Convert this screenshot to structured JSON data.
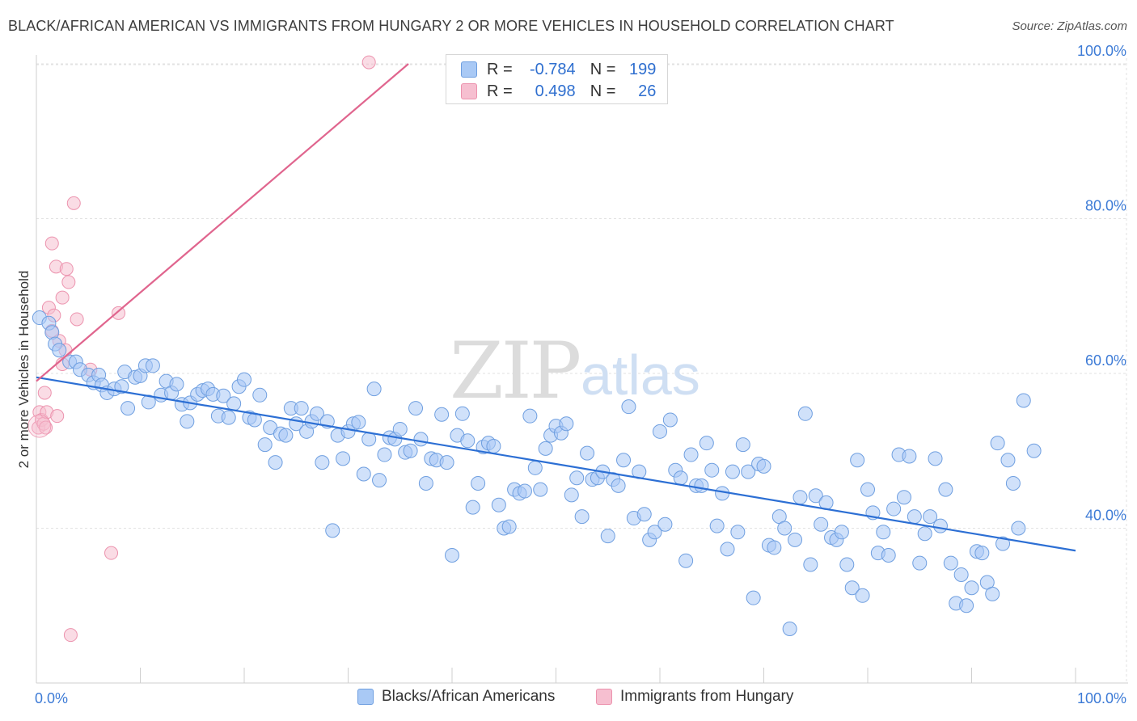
{
  "title": "BLACK/AFRICAN AMERICAN VS IMMIGRANTS FROM HUNGARY 2 OR MORE VEHICLES IN HOUSEHOLD CORRELATION CHART",
  "source": "Source: ZipAtlas.com",
  "watermark": {
    "zip": "ZIP",
    "atlas": "atlas"
  },
  "stats": {
    "r_label": "R =",
    "n_label": "N =",
    "rows": [
      {
        "r": "-0.784",
        "n": "199"
      },
      {
        "r": "0.498",
        "n": "26"
      }
    ]
  },
  "legend": {
    "items": [
      "Blacks/African Americans",
      "Immigrants from Hungary"
    ]
  },
  "colors": {
    "blue_fill": "#a9c9f5",
    "blue_stroke": "#6f9fe0",
    "blue_line": "#2c6fd4",
    "pink_fill": "#f6bfd0",
    "pink_stroke": "#ec93ae",
    "pink_line": "#e0658e",
    "grid": "#e2e2e2",
    "axis_label": "#3d7bd6"
  },
  "chart_data": {
    "type": "scatter",
    "title": "BLACK/AFRICAN AMERICAN VS IMMIGRANTS FROM HUNGARY 2 OR MORE VEHICLES IN HOUSEHOLD CORRELATION CHART",
    "xlabel": "",
    "ylabel": "2 or more Vehicles in Household",
    "xlim": [
      0,
      100
    ],
    "ylim": [
      20,
      102
    ],
    "x_tick_labels": [
      "0.0%",
      "100.0%"
    ],
    "y_ticks": [
      40,
      60,
      80,
      100
    ],
    "y_tick_labels": [
      "40.0%",
      "60.0%",
      "80.0%",
      "100.0%"
    ],
    "grid": true,
    "legend_position": "bottom",
    "series": [
      {
        "name": "Blacks/African Americans",
        "color": "#a9c9f5",
        "trend": {
          "x": [
            0,
            100
          ],
          "y": [
            59.5,
            37.1
          ]
        },
        "points": [
          [
            0.3,
            67.2
          ],
          [
            1.2,
            66.5
          ],
          [
            1.5,
            65.3
          ],
          [
            1.8,
            63.8
          ],
          [
            2.2,
            63.0
          ],
          [
            3.2,
            61.5
          ],
          [
            3.8,
            61.5
          ],
          [
            4.2,
            60.5
          ],
          [
            5.0,
            59.8
          ],
          [
            5.5,
            58.8
          ],
          [
            6.0,
            59.8
          ],
          [
            6.3,
            58.5
          ],
          [
            6.8,
            57.5
          ],
          [
            7.5,
            58.0
          ],
          [
            8.2,
            58.3
          ],
          [
            8.5,
            60.2
          ],
          [
            8.8,
            55.5
          ],
          [
            9.5,
            59.5
          ],
          [
            10.0,
            59.7
          ],
          [
            10.5,
            61.0
          ],
          [
            10.8,
            56.3
          ],
          [
            11.2,
            61.0
          ],
          [
            12.0,
            57.2
          ],
          [
            12.5,
            59.0
          ],
          [
            13.0,
            57.5
          ],
          [
            13.5,
            58.6
          ],
          [
            14.0,
            56.0
          ],
          [
            14.5,
            53.8
          ],
          [
            14.8,
            56.2
          ],
          [
            15.5,
            57.3
          ],
          [
            16.0,
            57.8
          ],
          [
            16.5,
            58.0
          ],
          [
            17.0,
            57.3
          ],
          [
            17.5,
            54.5
          ],
          [
            18.0,
            57.1
          ],
          [
            18.5,
            54.3
          ],
          [
            19.0,
            56.1
          ],
          [
            19.5,
            58.3
          ],
          [
            20.0,
            59.2
          ],
          [
            20.5,
            54.3
          ],
          [
            21.0,
            54.0
          ],
          [
            21.5,
            57.2
          ],
          [
            22.0,
            50.8
          ],
          [
            22.5,
            53.0
          ],
          [
            23.0,
            48.5
          ],
          [
            23.5,
            52.2
          ],
          [
            24.0,
            52.0
          ],
          [
            24.5,
            55.5
          ],
          [
            25.0,
            53.5
          ],
          [
            25.5,
            55.5
          ],
          [
            26.0,
            52.5
          ],
          [
            26.5,
            53.8
          ],
          [
            27.0,
            54.8
          ],
          [
            27.5,
            48.5
          ],
          [
            28.0,
            53.8
          ],
          [
            28.5,
            39.7
          ],
          [
            29.0,
            52.0
          ],
          [
            29.5,
            49.0
          ],
          [
            30.0,
            52.5
          ],
          [
            30.5,
            53.5
          ],
          [
            31.0,
            53.7
          ],
          [
            31.5,
            47.0
          ],
          [
            32.0,
            51.5
          ],
          [
            32.5,
            58.0
          ],
          [
            33.0,
            46.2
          ],
          [
            33.5,
            49.5
          ],
          [
            34.0,
            51.7
          ],
          [
            34.5,
            51.5
          ],
          [
            35.0,
            52.8
          ],
          [
            35.5,
            49.8
          ],
          [
            36.0,
            50.0
          ],
          [
            36.5,
            55.5
          ],
          [
            37.0,
            51.5
          ],
          [
            37.5,
            45.8
          ],
          [
            38.0,
            49.0
          ],
          [
            38.5,
            48.8
          ],
          [
            39.0,
            54.7
          ],
          [
            39.5,
            48.5
          ],
          [
            40.0,
            36.5
          ],
          [
            40.5,
            52.0
          ],
          [
            41.0,
            54.8
          ],
          [
            41.5,
            51.3
          ],
          [
            42.0,
            42.7
          ],
          [
            42.5,
            45.8
          ],
          [
            43.0,
            50.5
          ],
          [
            43.5,
            51.0
          ],
          [
            44.0,
            50.6
          ],
          [
            44.5,
            43.0
          ],
          [
            45.0,
            40.0
          ],
          [
            45.5,
            40.2
          ],
          [
            46.0,
            45.0
          ],
          [
            46.5,
            44.5
          ],
          [
            47.0,
            44.8
          ],
          [
            47.5,
            54.5
          ],
          [
            48.0,
            47.8
          ],
          [
            48.5,
            45.0
          ],
          [
            49.0,
            50.3
          ],
          [
            49.5,
            52.0
          ],
          [
            50.0,
            53.2
          ],
          [
            50.5,
            52.3
          ],
          [
            51.0,
            53.5
          ],
          [
            51.5,
            44.3
          ],
          [
            52.0,
            46.5
          ],
          [
            52.5,
            41.5
          ],
          [
            53.0,
            49.7
          ],
          [
            53.5,
            46.3
          ],
          [
            54.0,
            46.5
          ],
          [
            54.5,
            47.3
          ],
          [
            55.0,
            39.0
          ],
          [
            55.5,
            46.3
          ],
          [
            56.0,
            45.5
          ],
          [
            56.5,
            48.8
          ],
          [
            57.0,
            55.7
          ],
          [
            57.5,
            41.3
          ],
          [
            58.0,
            47.3
          ],
          [
            58.5,
            41.8
          ],
          [
            59.0,
            38.5
          ],
          [
            59.5,
            39.5
          ],
          [
            60.0,
            52.5
          ],
          [
            60.5,
            40.5
          ],
          [
            61.0,
            54.0
          ],
          [
            61.5,
            47.5
          ],
          [
            62.0,
            46.5
          ],
          [
            62.5,
            35.8
          ],
          [
            63.0,
            49.5
          ],
          [
            63.5,
            45.5
          ],
          [
            64.0,
            45.5
          ],
          [
            64.5,
            51.0
          ],
          [
            65.0,
            47.5
          ],
          [
            65.5,
            40.3
          ],
          [
            66.0,
            44.5
          ],
          [
            66.5,
            37.3
          ],
          [
            67.0,
            47.3
          ],
          [
            67.5,
            39.5
          ],
          [
            68.0,
            50.8
          ],
          [
            68.5,
            47.3
          ],
          [
            69.0,
            31.0
          ],
          [
            69.5,
            48.3
          ],
          [
            70.0,
            48.0
          ],
          [
            70.5,
            37.8
          ],
          [
            71.0,
            37.5
          ],
          [
            71.5,
            41.5
          ],
          [
            72.0,
            40.0
          ],
          [
            72.5,
            27.0
          ],
          [
            73.0,
            38.5
          ],
          [
            73.5,
            44.0
          ],
          [
            74.0,
            54.8
          ],
          [
            74.5,
            35.3
          ],
          [
            75.0,
            44.2
          ],
          [
            75.5,
            40.5
          ],
          [
            76.0,
            43.3
          ],
          [
            76.5,
            38.8
          ],
          [
            77.0,
            38.5
          ],
          [
            77.5,
            39.5
          ],
          [
            78.0,
            35.3
          ],
          [
            78.5,
            32.3
          ],
          [
            79.0,
            48.8
          ],
          [
            79.5,
            31.3
          ],
          [
            80.0,
            45.0
          ],
          [
            80.5,
            42.0
          ],
          [
            81.0,
            36.8
          ],
          [
            81.5,
            39.5
          ],
          [
            82.0,
            36.5
          ],
          [
            82.5,
            42.5
          ],
          [
            83.0,
            49.5
          ],
          [
            83.5,
            44.0
          ],
          [
            84.0,
            49.3
          ],
          [
            84.5,
            41.5
          ],
          [
            85.0,
            35.5
          ],
          [
            85.5,
            39.3
          ],
          [
            86.0,
            41.5
          ],
          [
            86.5,
            49.0
          ],
          [
            87.0,
            40.3
          ],
          [
            87.5,
            45.0
          ],
          [
            88.0,
            35.5
          ],
          [
            88.5,
            30.3
          ],
          [
            89.0,
            34.0
          ],
          [
            89.5,
            30.0
          ],
          [
            90.0,
            32.3
          ],
          [
            90.5,
            37.0
          ],
          [
            91.0,
            36.8
          ],
          [
            91.5,
            33.0
          ],
          [
            92.0,
            31.5
          ],
          [
            92.5,
            51.0
          ],
          [
            93.0,
            38.0
          ],
          [
            93.5,
            48.8
          ],
          [
            94.0,
            45.8
          ],
          [
            94.5,
            40.0
          ],
          [
            95.0,
            56.5
          ],
          [
            96.0,
            50.0
          ]
        ]
      },
      {
        "name": "Immigrants from Hungary",
        "color": "#f6bfd0",
        "trend": {
          "x": [
            0,
            35.8
          ],
          "y": [
            59.0,
            100
          ]
        },
        "points": [
          [
            0.2,
            53.0
          ],
          [
            0.3,
            55.0
          ],
          [
            0.5,
            54.0
          ],
          [
            0.7,
            53.5
          ],
          [
            0.8,
            57.5
          ],
          [
            0.9,
            53.0
          ],
          [
            1.0,
            55.0
          ],
          [
            1.2,
            68.5
          ],
          [
            1.5,
            76.8
          ],
          [
            1.5,
            65.5
          ],
          [
            1.7,
            67.5
          ],
          [
            1.9,
            73.8
          ],
          [
            2.0,
            54.5
          ],
          [
            2.2,
            64.2
          ],
          [
            2.5,
            61.2
          ],
          [
            2.5,
            69.8
          ],
          [
            2.8,
            63.0
          ],
          [
            2.9,
            73.5
          ],
          [
            3.1,
            71.8
          ],
          [
            3.3,
            26.2
          ],
          [
            3.6,
            82.0
          ],
          [
            3.9,
            67.0
          ],
          [
            5.2,
            60.5
          ],
          [
            7.2,
            36.8
          ],
          [
            7.9,
            67.8
          ],
          [
            32.0,
            100.2
          ]
        ]
      }
    ]
  }
}
